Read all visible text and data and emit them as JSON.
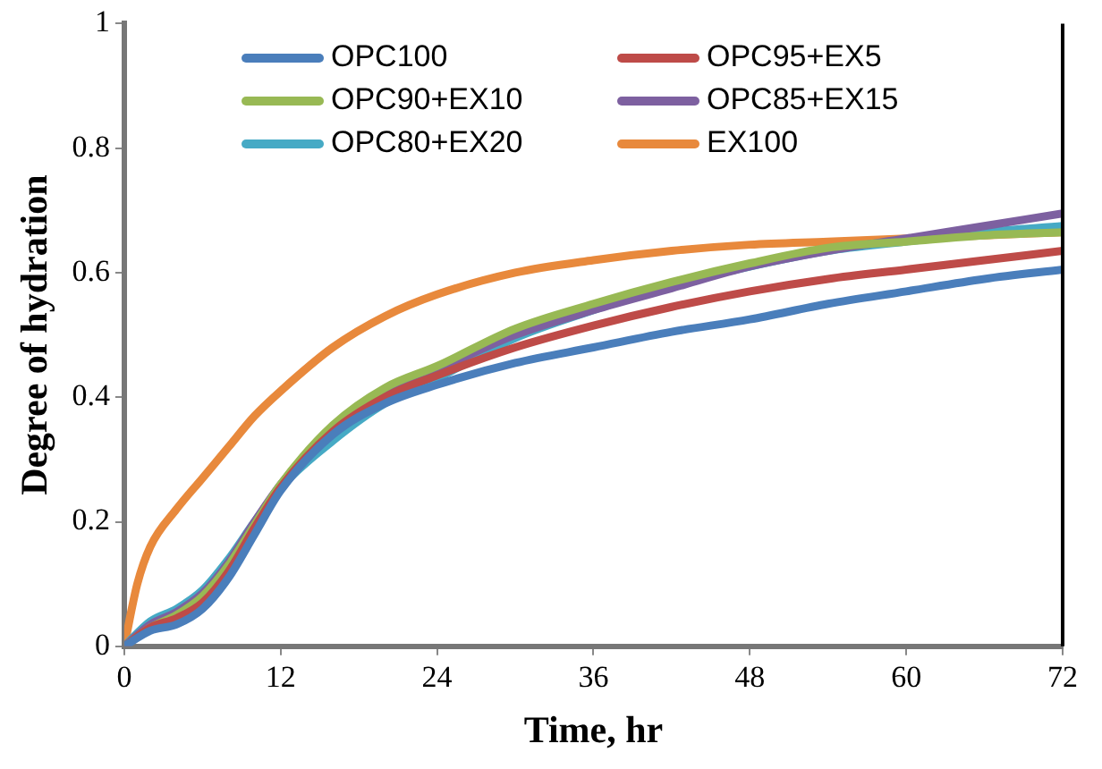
{
  "chart_data": {
    "type": "line",
    "xlabel": "Time, hr",
    "ylabel": "Degree of hydration",
    "x": [
      0,
      2,
      4,
      6,
      8,
      10,
      12,
      16,
      20,
      24,
      30,
      36,
      42,
      48,
      54,
      60,
      66,
      72
    ],
    "xlim": [
      0,
      72
    ],
    "xticks": [
      0,
      12,
      24,
      36,
      48,
      60,
      72
    ],
    "ylim": [
      0,
      1
    ],
    "yticks": [
      0,
      0.2,
      0.4,
      0.6,
      0.8,
      1
    ],
    "grid": false,
    "legend": "top",
    "marker": "none",
    "line_style": "solid",
    "series": [
      {
        "name": "OPC100",
        "color": "#4a7ebb",
        "values": [
          0,
          0.025,
          0.035,
          0.06,
          0.11,
          0.18,
          0.25,
          0.34,
          0.39,
          0.42,
          0.455,
          0.48,
          0.505,
          0.525,
          0.55,
          0.57,
          0.59,
          0.605
        ]
      },
      {
        "name": "OPC95+EX5",
        "color": "#be4b48",
        "values": [
          0,
          0.03,
          0.045,
          0.07,
          0.12,
          0.19,
          0.255,
          0.345,
          0.4,
          0.435,
          0.48,
          0.515,
          0.545,
          0.57,
          0.59,
          0.605,
          0.62,
          0.635
        ]
      },
      {
        "name": "OPC90+EX10",
        "color": "#98b954",
        "values": [
          0,
          0.03,
          0.05,
          0.08,
          0.13,
          0.195,
          0.26,
          0.355,
          0.415,
          0.45,
          0.51,
          0.55,
          0.585,
          0.615,
          0.64,
          0.65,
          0.66,
          0.665
        ]
      },
      {
        "name": "OPC85+EX15",
        "color": "#7d60a0",
        "values": [
          0,
          0.035,
          0.055,
          0.085,
          0.135,
          0.2,
          0.26,
          0.35,
          0.41,
          0.445,
          0.5,
          0.54,
          0.575,
          0.61,
          0.635,
          0.655,
          0.675,
          0.695
        ]
      },
      {
        "name": "OPC80+EX20",
        "color": "#46aac5",
        "values": [
          0,
          0.04,
          0.06,
          0.09,
          0.14,
          0.2,
          0.255,
          0.33,
          0.39,
          0.43,
          0.495,
          0.54,
          0.58,
          0.61,
          0.635,
          0.65,
          0.665,
          0.675
        ]
      },
      {
        "name": "EX100",
        "color": "#e8893c",
        "x": [
          0,
          1,
          2,
          4,
          6,
          8,
          10,
          12,
          16,
          20,
          24,
          30,
          36,
          42,
          48,
          54,
          60,
          66,
          72
        ],
        "values": [
          0,
          0.1,
          0.16,
          0.22,
          0.27,
          0.32,
          0.37,
          0.41,
          0.48,
          0.53,
          0.565,
          0.6,
          0.62,
          0.635,
          0.645,
          0.65,
          0.655,
          0.66,
          0.665
        ]
      }
    ]
  }
}
